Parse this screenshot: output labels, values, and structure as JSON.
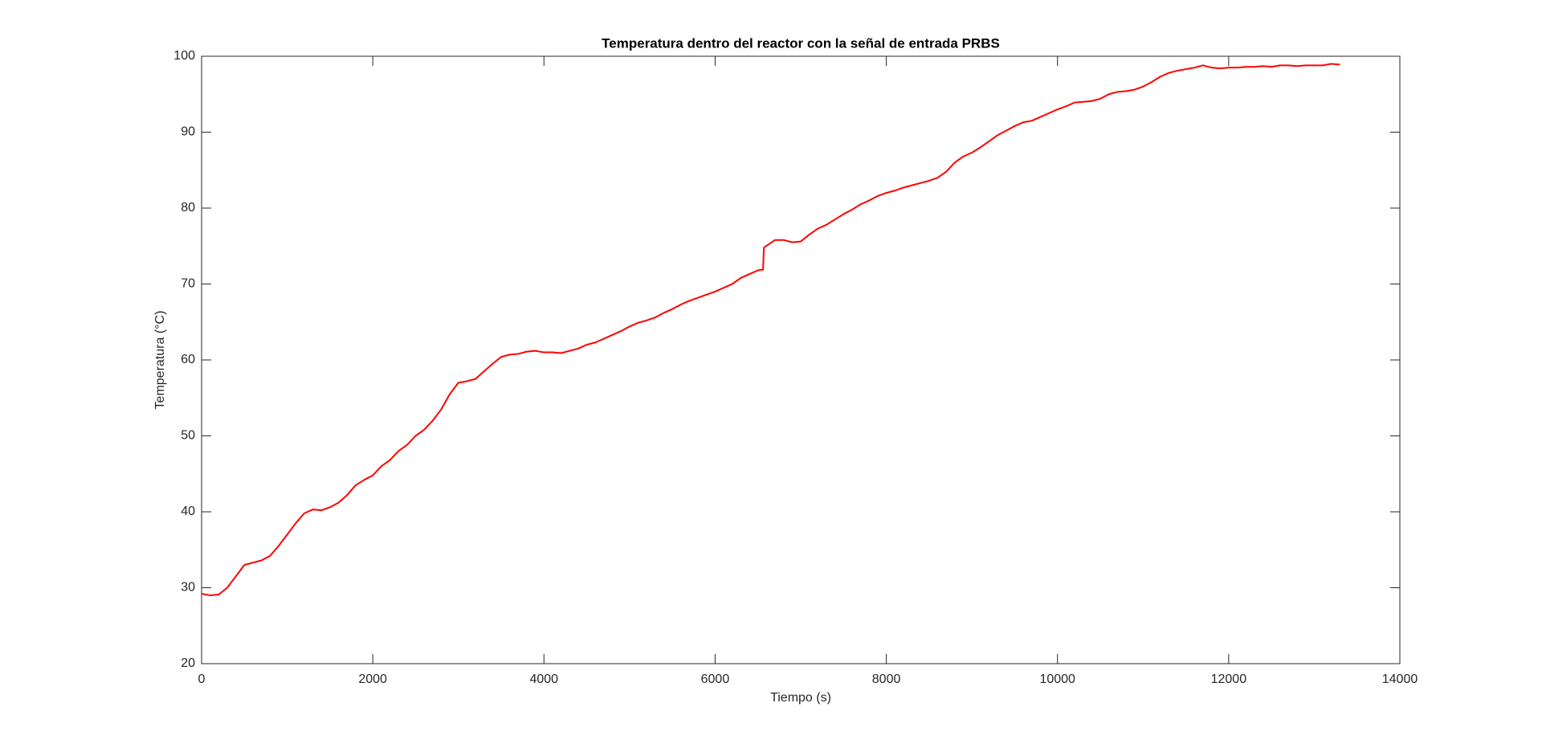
{
  "chart_data": {
    "type": "line",
    "title": "Temperatura dentro del reactor con la señal de entrada PRBS",
    "xlabel": "Tiempo (s)",
    "ylabel": "Temperatura (°C)",
    "xlim": [
      0,
      14000
    ],
    "xticks": [
      0,
      2000,
      4000,
      6000,
      8000,
      10000,
      12000,
      14000
    ],
    "ylim": [
      20,
      100
    ],
    "yticks": [
      20,
      30,
      40,
      50,
      60,
      70,
      80,
      90,
      100
    ],
    "x": [
      0,
      100,
      200,
      300,
      400,
      500,
      600,
      700,
      800,
      900,
      1000,
      1100,
      1200,
      1300,
      1400,
      1500,
      1600,
      1700,
      1800,
      1900,
      2000,
      2100,
      2200,
      2300,
      2400,
      2500,
      2600,
      2700,
      2800,
      2900,
      3000,
      3100,
      3200,
      3300,
      3400,
      3500,
      3600,
      3700,
      3800,
      3900,
      4000,
      4100,
      4200,
      4300,
      4400,
      4500,
      4600,
      4700,
      4800,
      4900,
      5000,
      5100,
      5200,
      5300,
      5400,
      5500,
      5600,
      5700,
      5800,
      5900,
      6000,
      6100,
      6200,
      6300,
      6400,
      6500,
      6560,
      6570,
      6700,
      6800,
      6900,
      7000,
      7100,
      7200,
      7300,
      7400,
      7500,
      7600,
      7700,
      7800,
      7900,
      8000,
      8100,
      8200,
      8300,
      8400,
      8500,
      8600,
      8700,
      8800,
      8900,
      9000,
      9100,
      9200,
      9300,
      9400,
      9500,
      9600,
      9700,
      9800,
      9900,
      10000,
      10100,
      10200,
      10300,
      10400,
      10500,
      10600,
      10700,
      10800,
      10900,
      11000,
      11100,
      11200,
      11300,
      11400,
      11500,
      11600,
      11700,
      11800,
      11900,
      12000,
      12100,
      12200,
      12300,
      12400,
      12500,
      12600,
      12700,
      12800,
      12900,
      13000,
      13100,
      13200,
      13300
    ],
    "series": [
      {
        "name": "Temperatura",
        "color": "#ff0000",
        "values": [
          29.2,
          29,
          29.1,
          30,
          31.5,
          33,
          33.3,
          33.6,
          34.2,
          35.5,
          37,
          38.5,
          39.8,
          40.3,
          40.2,
          40.6,
          41.2,
          42.2,
          43.5,
          44.2,
          44.8,
          46,
          46.8,
          48,
          48.8,
          50,
          50.8,
          52,
          53.5,
          55.5,
          57,
          57.2,
          57.5,
          58.5,
          59.5,
          60.4,
          60.7,
          60.8,
          61.1,
          61.2,
          61,
          61,
          60.9,
          61.2,
          61.5,
          62,
          62.3,
          62.8,
          63.3,
          63.8,
          64.4,
          64.9,
          65.2,
          65.6,
          66.2,
          66.7,
          67.3,
          67.8,
          68.2,
          68.6,
          69,
          69.5,
          70,
          70.8,
          71.3,
          71.8,
          71.9,
          74.8,
          75.8,
          75.8,
          75.5,
          75.6,
          76.5,
          77.3,
          77.8,
          78.5,
          79.2,
          79.8,
          80.5,
          81,
          81.6,
          82,
          82.3,
          82.7,
          83,
          83.3,
          83.6,
          84,
          84.8,
          86,
          86.8,
          87.3,
          88,
          88.8,
          89.6,
          90.2,
          90.8,
          91.3,
          91.5,
          92,
          92.5,
          93,
          93.4,
          93.9,
          94,
          94.1,
          94.4,
          95,
          95.3,
          95.4,
          95.6,
          96,
          96.6,
          97.3,
          97.8,
          98.1,
          98.3,
          98.5,
          98.8,
          98.5,
          98.4,
          98.5,
          98.5,
          98.6,
          98.6,
          98.7,
          98.6,
          98.8,
          98.8,
          98.7,
          98.8,
          98.8,
          98.8,
          99,
          98.9
        ]
      }
    ]
  }
}
